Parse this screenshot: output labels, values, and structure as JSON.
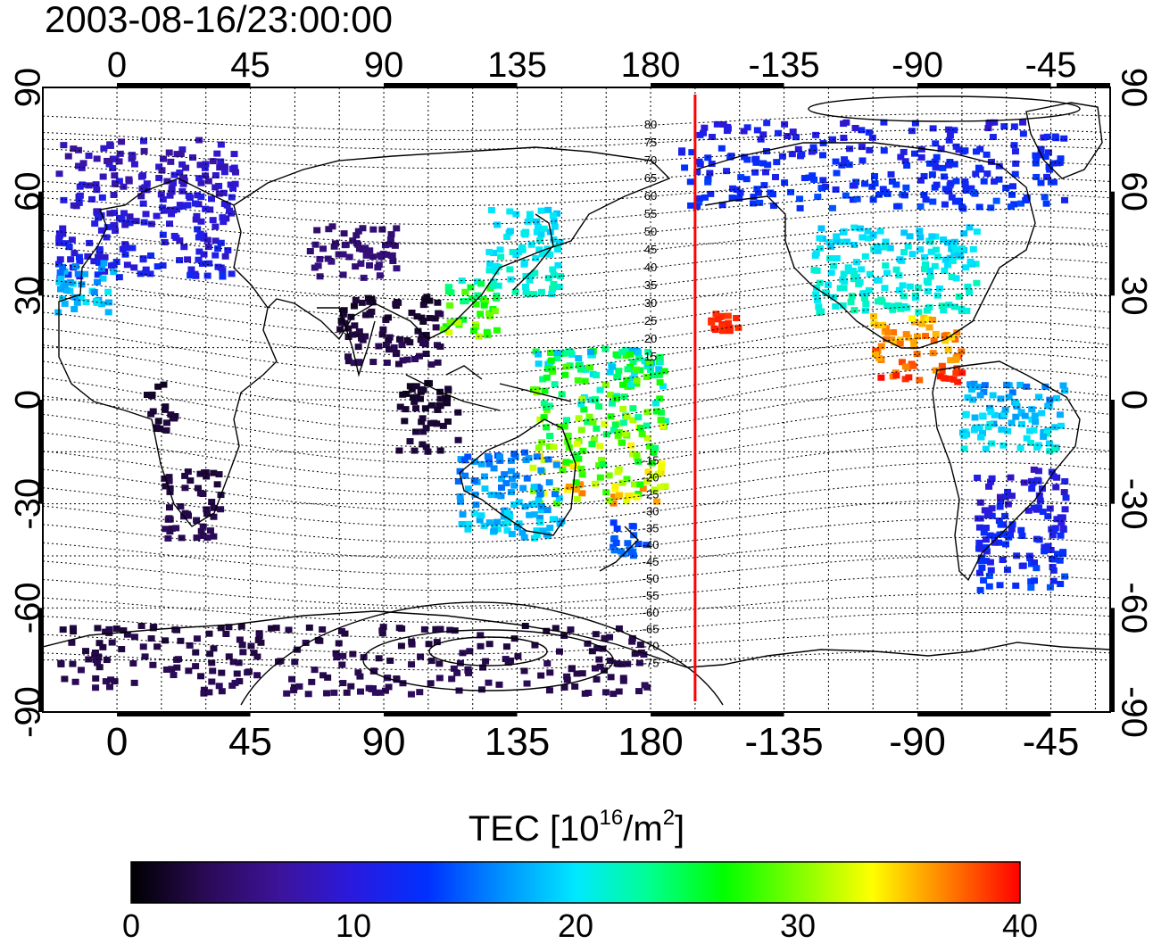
{
  "title": "2003-08-16/23:00:00",
  "colorbar": {
    "title_prefix": "TEC  [10",
    "title_exp1": "16",
    "title_mid": "/m",
    "title_exp2": "2",
    "title_suffix": "]",
    "min": 0,
    "max": 40,
    "ticks": [
      "0",
      "10",
      "20",
      "30",
      "40"
    ],
    "colors": [
      "#000000",
      "#2a0a55",
      "#3c139a",
      "#2a1adf",
      "#0030ff",
      "#0090ff",
      "#00e8ff",
      "#00ff90",
      "#00ff00",
      "#80ff00",
      "#ffff00",
      "#ff8000",
      "#ff0000"
    ]
  },
  "map": {
    "projection": "equirectangular",
    "x_ticks_top": [
      "0",
      "45",
      "90",
      "135",
      "180",
      "-135",
      "-90",
      "-45"
    ],
    "x_ticks_bottom": [
      "0",
      "45",
      "90",
      "135",
      "180",
      "-135",
      "-90",
      "-45"
    ],
    "y_ticks_left": [
      "90",
      "60",
      "30",
      "0",
      "-30",
      "-60",
      "-90"
    ],
    "y_ticks_right": [
      "90",
      "60",
      "30",
      "0",
      "-30",
      "-60",
      "-90"
    ],
    "lon_range": [
      -25,
      335
    ],
    "lat_range": [
      -90,
      90
    ],
    "grid": true,
    "red_meridian_lon": 195,
    "maglat_labels_north": [
      "80",
      "75",
      "70",
      "65",
      "60",
      "55",
      "50",
      "45",
      "40",
      "35",
      "30",
      "25",
      "20",
      "15"
    ],
    "maglat_labels_south": [
      "-15",
      "-20",
      "-25",
      "-30",
      "-35",
      "-40",
      "-45",
      "-50",
      "-55",
      "-60",
      "-65",
      "-70",
      "-75"
    ],
    "tec_clusters": [
      {
        "region": "Europe",
        "lon": [
          -20,
          40
        ],
        "lat": [
          35,
          75
        ],
        "tec": [
          6,
          13
        ]
      },
      {
        "region": "Iberia-Africa",
        "lon": [
          -20,
          0
        ],
        "lat": [
          25,
          40
        ],
        "tec": [
          14,
          22
        ]
      },
      {
        "region": "Central Asia",
        "lon": [
          65,
          95
        ],
        "lat": [
          35,
          50
        ],
        "tec": [
          4,
          6
        ]
      },
      {
        "region": "India-SE Asia",
        "lon": [
          75,
          110
        ],
        "lat": [
          10,
          30
        ],
        "tec": [
          1,
          4
        ]
      },
      {
        "region": "Indonesia",
        "lon": [
          95,
          115
        ],
        "lat": [
          -15,
          5
        ],
        "tec": [
          1,
          3
        ]
      },
      {
        "region": "Central Africa",
        "lon": [
          10,
          20
        ],
        "lat": [
          -10,
          5
        ],
        "tec": [
          1,
          3
        ]
      },
      {
        "region": "Southern Africa",
        "lon": [
          15,
          35
        ],
        "lat": [
          -40,
          -20
        ],
        "tec": [
          2,
          4
        ]
      },
      {
        "region": "Japan",
        "lon": [
          125,
          150
        ],
        "lat": [
          30,
          55
        ],
        "tec": [
          18,
          23
        ]
      },
      {
        "region": "East China",
        "lon": [
          110,
          130
        ],
        "lat": [
          18,
          35
        ],
        "tec": [
          20,
          34
        ]
      },
      {
        "region": "Pacific Islands",
        "lon": [
          140,
          185
        ],
        "lat": [
          -30,
          15
        ],
        "tec": [
          17,
          38
        ]
      },
      {
        "region": "Australia",
        "lon": [
          115,
          150
        ],
        "lat": [
          -40,
          -15
        ],
        "tec": [
          14,
          21
        ]
      },
      {
        "region": "New Zealand",
        "lon": [
          165,
          180
        ],
        "lat": [
          -45,
          -35
        ],
        "tec": [
          13,
          16
        ]
      },
      {
        "region": "Hawaii",
        "lon": [
          200,
          210
        ],
        "lat": [
          18,
          25
        ],
        "tec": [
          38,
          40
        ]
      },
      {
        "region": "Alaska-Canada",
        "lon": [
          190,
          320
        ],
        "lat": [
          55,
          80
        ],
        "tec": [
          9,
          15
        ]
      },
      {
        "region": "USA",
        "lon": [
          235,
          290
        ],
        "lat": [
          25,
          50
        ],
        "tec": [
          18,
          23
        ]
      },
      {
        "region": "Mexico-Central America",
        "lon": [
          255,
          285
        ],
        "lat": [
          5,
          25
        ],
        "tec": [
          33,
          40
        ]
      },
      {
        "region": "Northern South America",
        "lon": [
          285,
          320
        ],
        "lat": [
          -15,
          5
        ],
        "tec": [
          15,
          22
        ]
      },
      {
        "region": "Southern South America",
        "lon": [
          290,
          320
        ],
        "lat": [
          -55,
          -20
        ],
        "tec": [
          8,
          15
        ]
      },
      {
        "region": "Antarctica",
        "lon": [
          -20,
          180
        ],
        "lat": [
          -85,
          -65
        ],
        "tec": [
          2,
          4
        ]
      }
    ]
  }
}
